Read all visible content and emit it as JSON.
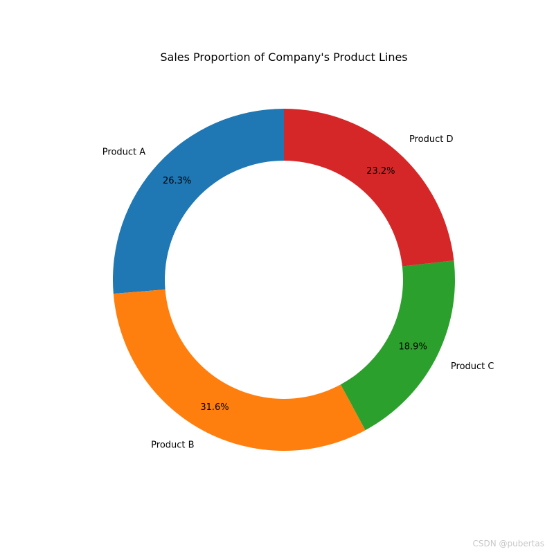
{
  "chart_data": {
    "type": "pie",
    "title": "Sales Proportion of Company's Product Lines",
    "donut": true,
    "start_angle_deg": 90,
    "direction": "counterclockwise",
    "slices": [
      {
        "label": "Product A",
        "value": 26.3,
        "pct_label": "26.3%",
        "color": "#1f77b4"
      },
      {
        "label": "Product B",
        "value": 31.6,
        "pct_label": "31.6%",
        "color": "#ff7f0e"
      },
      {
        "label": "Product C",
        "value": 18.9,
        "pct_label": "18.9%",
        "color": "#2ca02c"
      },
      {
        "label": "Product D",
        "value": 23.2,
        "pct_label": "23.2%",
        "color": "#d62728"
      }
    ]
  },
  "watermark": "CSDN @pubertas"
}
